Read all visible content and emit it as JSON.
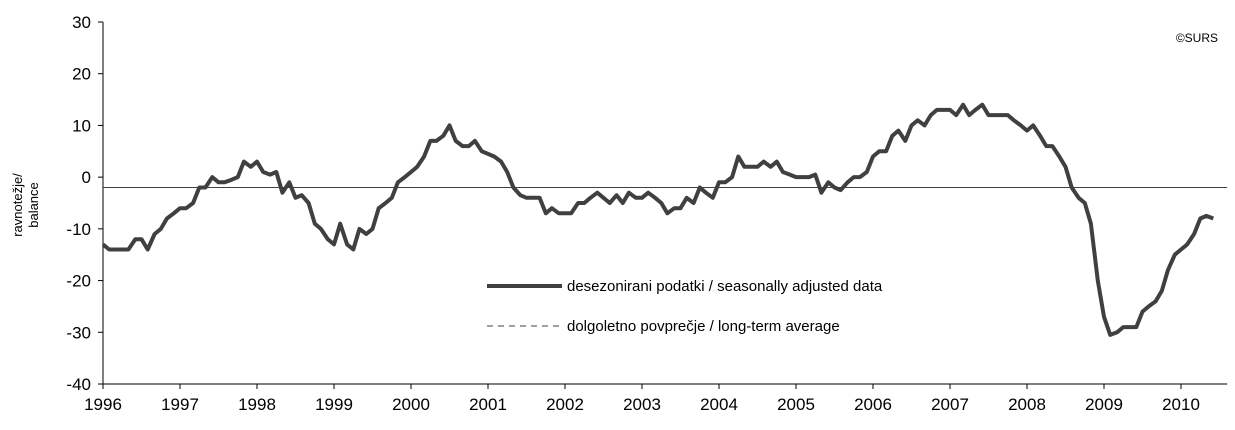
{
  "chart_data": {
    "type": "line",
    "annotation": "©SURS",
    "y_label": [
      "ravnotežje/",
      "balance"
    ],
    "xlim": [
      1996,
      2010.6
    ],
    "ylim": [
      -40,
      30
    ],
    "xticks": [
      1996,
      1997,
      1998,
      1999,
      2000,
      2001,
      2002,
      2003,
      2004,
      2005,
      2006,
      2007,
      2008,
      2009,
      2010
    ],
    "yticks": [
      -40,
      -30,
      -20,
      -10,
      0,
      10,
      20,
      30
    ],
    "grid": false,
    "x": [
      1996,
      1996.08,
      1996.17,
      1996.25,
      1996.33,
      1996.42,
      1996.5,
      1996.58,
      1996.67,
      1996.75,
      1996.83,
      1996.92,
      1997,
      1997.08,
      1997.17,
      1997.25,
      1997.33,
      1997.42,
      1997.5,
      1997.58,
      1997.67,
      1997.75,
      1997.83,
      1997.92,
      1998,
      1998.08,
      1998.17,
      1998.25,
      1998.33,
      1998.42,
      1998.5,
      1998.58,
      1998.67,
      1998.75,
      1998.83,
      1998.92,
      1999,
      1999.08,
      1999.17,
      1999.25,
      1999.33,
      1999.42,
      1999.5,
      1999.58,
      1999.67,
      1999.75,
      1999.83,
      1999.92,
      2000,
      2000.08,
      2000.17,
      2000.25,
      2000.33,
      2000.42,
      2000.5,
      2000.58,
      2000.67,
      2000.75,
      2000.83,
      2000.92,
      2001,
      2001.08,
      2001.17,
      2001.25,
      2001.33,
      2001.42,
      2001.5,
      2001.58,
      2001.67,
      2001.75,
      2001.83,
      2001.92,
      2002,
      2002.08,
      2002.17,
      2002.25,
      2002.33,
      2002.42,
      2002.5,
      2002.58,
      2002.67,
      2002.75,
      2002.83,
      2002.92,
      2003,
      2003.08,
      2003.17,
      2003.25,
      2003.33,
      2003.42,
      2003.5,
      2003.58,
      2003.67,
      2003.75,
      2003.83,
      2003.92,
      2004,
      2004.08,
      2004.17,
      2004.25,
      2004.33,
      2004.42,
      2004.5,
      2004.58,
      2004.67,
      2004.75,
      2004.83,
      2004.92,
      2005,
      2005.08,
      2005.17,
      2005.25,
      2005.33,
      2005.42,
      2005.5,
      2005.58,
      2005.67,
      2005.75,
      2005.83,
      2005.92,
      2006,
      2006.08,
      2006.17,
      2006.25,
      2006.33,
      2006.42,
      2006.5,
      2006.58,
      2006.67,
      2006.75,
      2006.83,
      2006.92,
      2007,
      2007.08,
      2007.17,
      2007.25,
      2007.33,
      2007.42,
      2007.5,
      2007.58,
      2007.67,
      2007.75,
      2007.83,
      2007.92,
      2008,
      2008.08,
      2008.17,
      2008.25,
      2008.33,
      2008.42,
      2008.5,
      2008.58,
      2008.67,
      2008.75,
      2008.83,
      2008.92,
      2009,
      2009.08,
      2009.17,
      2009.25,
      2009.33,
      2009.42,
      2009.5,
      2009.58,
      2009.67,
      2009.75,
      2009.83,
      2009.92,
      2010,
      2010.08,
      2010.17,
      2010.25,
      2010.33,
      2010.42
    ],
    "series": [
      {
        "name": "desezonirani podatki / seasonally adjusted data",
        "color": "#404040",
        "values": [
          -13,
          -14,
          -14,
          -14,
          -14,
          -12,
          -12,
          -14,
          -11,
          -10,
          -8,
          -7,
          -6,
          -6,
          -5,
          -2,
          -2,
          0,
          -1,
          -1,
          -0.5,
          0,
          3,
          2,
          3,
          1,
          0.5,
          1,
          -3,
          -1,
          -4,
          -3.5,
          -5,
          -9,
          -10,
          -12,
          -13,
          -9,
          -13,
          -14,
          -10,
          -11,
          -10,
          -6,
          -5,
          -4,
          -1,
          0,
          1,
          2,
          4,
          7,
          7,
          8,
          10,
          7,
          6,
          6,
          7,
          5,
          4.5,
          4,
          3,
          1,
          -2,
          -3.5,
          -4,
          -4,
          -4,
          -7,
          -6,
          -7,
          -7,
          -7,
          -5,
          -5,
          -4,
          -3,
          -4,
          -5,
          -3.5,
          -5,
          -3,
          -4,
          -4,
          -3,
          -4,
          -5,
          -7,
          -6,
          -6,
          -4,
          -5,
          -2,
          -3,
          -4,
          -1,
          -1,
          0,
          4,
          2,
          2,
          2,
          3,
          2,
          3,
          1,
          0.5,
          0,
          0,
          0,
          0.5,
          -3,
          -1,
          -2,
          -2.5,
          -1,
          0,
          0,
          1,
          4,
          5,
          5,
          8,
          9,
          7,
          10,
          11,
          10,
          12,
          13,
          13,
          13,
          12,
          14,
          12,
          13,
          14,
          12,
          12,
          12,
          12,
          11,
          10,
          9,
          10,
          8,
          6,
          6,
          4,
          2,
          -2,
          -4,
          -5,
          -9,
          -20,
          -27,
          -30.5,
          -30,
          -29,
          -29,
          -29,
          -26,
          -25,
          -24,
          -22,
          -18,
          -15,
          -14,
          -13,
          -11,
          -8,
          -7.5,
          -8
        ]
      }
    ],
    "reference_line": {
      "name": "dolgoletno povprečje / long-term average",
      "value": -2,
      "color": "#404040"
    }
  }
}
